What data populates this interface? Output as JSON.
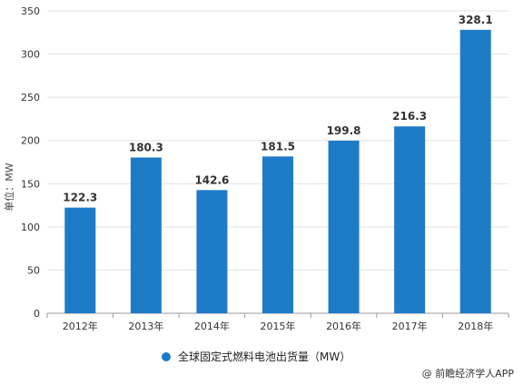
{
  "chart_data": {
    "type": "bar",
    "categories": [
      "2012年",
      "2013年",
      "2014年",
      "2015年",
      "2016年",
      "2017年",
      "2018年"
    ],
    "series": [
      {
        "name": "全球固定式燃料电池出货量（MW）",
        "values": [
          122.3,
          180.3,
          142.6,
          181.5,
          199.8,
          216.3,
          328.1
        ]
      }
    ],
    "data_labels": [
      "122.3",
      "180.3",
      "142.6",
      "181.5",
      "199.8",
      "216.3",
      "328.1"
    ],
    "ylabel": "单位：MW",
    "ylim": [
      0,
      350
    ],
    "yticks": [
      0,
      50,
      100,
      150,
      200,
      250,
      300,
      350
    ],
    "grid": true,
    "legend_position": "bottom",
    "bar_color": "#1e7bc8"
  },
  "credit": "@ 前瞻经济学人APP"
}
